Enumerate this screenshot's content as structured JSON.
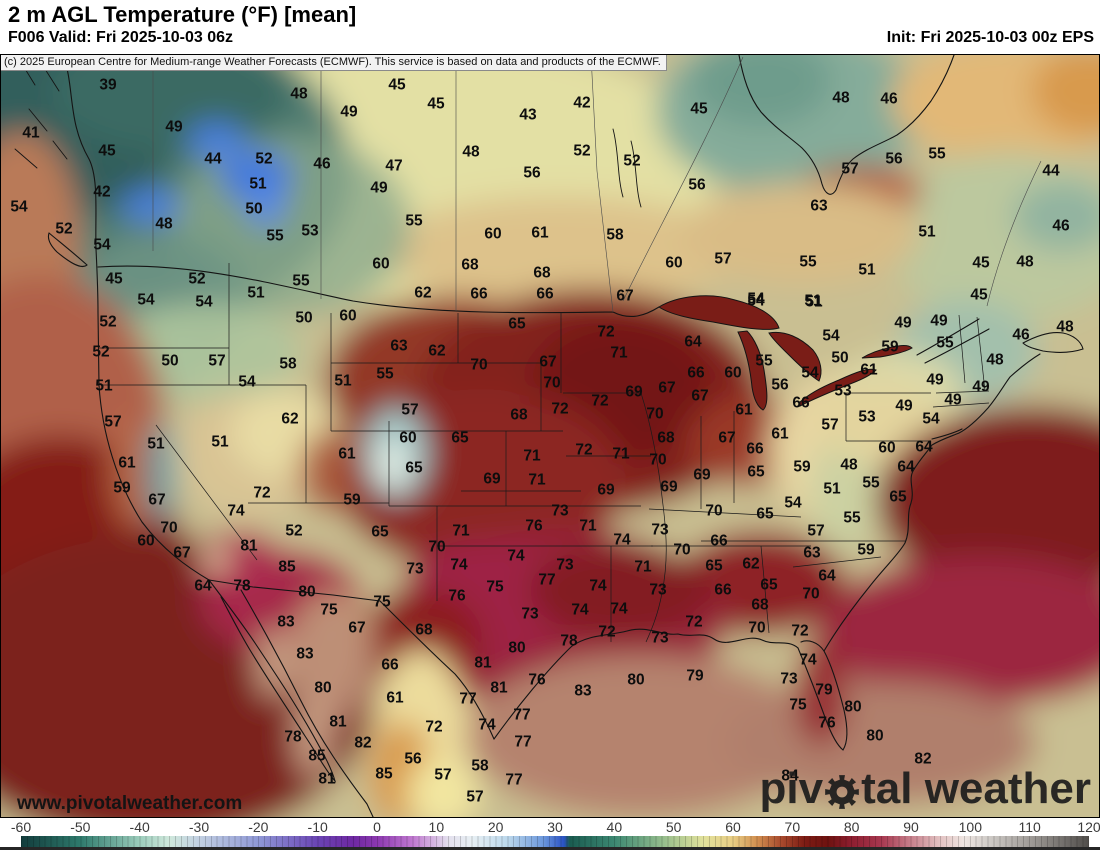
{
  "header": {
    "title": "2 m AGL Temperature (°F) [mean]",
    "valid": "F006 Valid: Fri 2025-10-03 06z",
    "init": "Init: Fri 2025-10-03 00z EPS"
  },
  "copyright": "(c) 2025 European Centre for Medium-range Weather Forecasts (ECMWF). This service is based on data and products of the ECMWF.",
  "watermark": "www.pivotalweather.com",
  "logo": {
    "part1": "piv",
    "part2": "tal weather",
    "gear_icon": "gear-icon",
    "color": "#1d1d1d"
  },
  "colorbar": {
    "units": "°F",
    "ticks": [
      -60,
      -50,
      -40,
      -30,
      -20,
      -10,
      0,
      10,
      20,
      30,
      40,
      50,
      60,
      70,
      80,
      90,
      100,
      110,
      120
    ],
    "range": [
      -60,
      120
    ],
    "stops": [
      [
        -60,
        "#123c3c"
      ],
      [
        -50,
        "#2e7a6c"
      ],
      [
        -40,
        "#9ccdbc"
      ],
      [
        -35,
        "#cfe8dc"
      ],
      [
        -30,
        "#c2d0e2"
      ],
      [
        -20,
        "#8f98d6"
      ],
      [
        -10,
        "#6a44b4"
      ],
      [
        -4,
        "#6e28a2"
      ],
      [
        0,
        "#8c38b0"
      ],
      [
        6,
        "#c078d0"
      ],
      [
        12,
        "#e4e0ee"
      ],
      [
        16,
        "#e8f0f4"
      ],
      [
        22,
        "#bcd8ec"
      ],
      [
        28,
        "#6c98dc"
      ],
      [
        31.5,
        "#2a52c4"
      ],
      [
        32.5,
        "#1a5c50"
      ],
      [
        40,
        "#3c8872"
      ],
      [
        48,
        "#93bc8c"
      ],
      [
        55,
        "#e2e29c"
      ],
      [
        60,
        "#e8cd84"
      ],
      [
        64,
        "#d29050"
      ],
      [
        68,
        "#aa4c2e"
      ],
      [
        72,
        "#7e1c14"
      ],
      [
        76,
        "#6e1210"
      ],
      [
        80,
        "#8e1e30"
      ],
      [
        85,
        "#a83850"
      ],
      [
        90,
        "#c8808c"
      ],
      [
        95,
        "#e4c4c4"
      ],
      [
        99,
        "#efe6e2"
      ],
      [
        103,
        "#d0ccc8"
      ],
      [
        110,
        "#a09c98"
      ],
      [
        120,
        "#504d4a"
      ]
    ]
  },
  "map": {
    "labels": [
      [
        39,
        107,
        83
      ],
      [
        48,
        298,
        92
      ],
      [
        49,
        348,
        110
      ],
      [
        41,
        30,
        131
      ],
      [
        49,
        173,
        125
      ],
      [
        45,
        106,
        149
      ],
      [
        44,
        212,
        157
      ],
      [
        52,
        263,
        157
      ],
      [
        46,
        321,
        162
      ],
      [
        42,
        101,
        190
      ],
      [
        51,
        257,
        182
      ],
      [
        50,
        253,
        207
      ],
      [
        54,
        18,
        205
      ],
      [
        52,
        63,
        227
      ],
      [
        48,
        163,
        222
      ],
      [
        55,
        274,
        234
      ],
      [
        53,
        309,
        229
      ],
      [
        54,
        101,
        243
      ],
      [
        45,
        113,
        277
      ],
      [
        52,
        196,
        277
      ],
      [
        54,
        145,
        298
      ],
      [
        54,
        203,
        300
      ],
      [
        51,
        255,
        291
      ],
      [
        55,
        300,
        279
      ],
      [
        45,
        396,
        83
      ],
      [
        45,
        435,
        102
      ],
      [
        42,
        581,
        101
      ],
      [
        43,
        527,
        113
      ],
      [
        45,
        698,
        107
      ],
      [
        48,
        470,
        150
      ],
      [
        52,
        581,
        149
      ],
      [
        52,
        631,
        159
      ],
      [
        47,
        393,
        164
      ],
      [
        56,
        531,
        171
      ],
      [
        56,
        696,
        183
      ],
      [
        49,
        378,
        186
      ],
      [
        55,
        413,
        219
      ],
      [
        60,
        492,
        232
      ],
      [
        61,
        539,
        231
      ],
      [
        58,
        614,
        233
      ],
      [
        60,
        380,
        262
      ],
      [
        60,
        673,
        261
      ],
      [
        57,
        722,
        257
      ],
      [
        68,
        469,
        263
      ],
      [
        68,
        541,
        271
      ],
      [
        62,
        422,
        291
      ],
      [
        66,
        478,
        292
      ],
      [
        66,
        544,
        292
      ],
      [
        67,
        624,
        294
      ],
      [
        48,
        840,
        96
      ],
      [
        46,
        888,
        97
      ],
      [
        56,
        893,
        157
      ],
      [
        55,
        936,
        152
      ],
      [
        44,
        1050,
        169
      ],
      [
        57,
        849,
        167
      ],
      [
        63,
        818,
        204
      ],
      [
        51,
        926,
        230
      ],
      [
        46,
        1060,
        224
      ],
      [
        55,
        807,
        260
      ],
      [
        51,
        866,
        268
      ],
      [
        45,
        980,
        261
      ],
      [
        48,
        1024,
        260
      ],
      [
        45,
        978,
        293
      ],
      [
        51,
        812,
        299
      ],
      [
        54,
        755,
        299
      ],
      [
        52,
        107,
        320
      ],
      [
        50,
        303,
        316
      ],
      [
        60,
        347,
        314
      ],
      [
        52,
        100,
        350
      ],
      [
        50,
        169,
        359
      ],
      [
        57,
        216,
        359
      ],
      [
        58,
        287,
        362
      ],
      [
        54,
        246,
        380
      ],
      [
        51,
        342,
        379
      ],
      [
        51,
        103,
        384
      ],
      [
        57,
        112,
        420
      ],
      [
        62,
        289,
        417
      ],
      [
        51,
        155,
        442
      ],
      [
        51,
        219,
        440
      ],
      [
        61,
        346,
        452
      ],
      [
        61,
        126,
        461
      ],
      [
        59,
        121,
        486
      ],
      [
        67,
        156,
        498
      ],
      [
        72,
        261,
        491
      ],
      [
        74,
        235,
        509
      ],
      [
        59,
        351,
        498
      ],
      [
        70,
        168,
        526
      ],
      [
        52,
        293,
        529
      ],
      [
        60,
        145,
        539
      ],
      [
        67,
        181,
        551
      ],
      [
        81,
        248,
        544
      ],
      [
        65,
        516,
        322
      ],
      [
        72,
        605,
        330
      ],
      [
        63,
        398,
        344
      ],
      [
        62,
        436,
        349
      ],
      [
        71,
        618,
        351
      ],
      [
        64,
        692,
        340
      ],
      [
        70,
        478,
        363
      ],
      [
        67,
        547,
        360
      ],
      [
        55,
        384,
        372
      ],
      [
        66,
        695,
        371
      ],
      [
        60,
        732,
        371
      ],
      [
        70,
        551,
        381
      ],
      [
        69,
        633,
        390
      ],
      [
        67,
        666,
        386
      ],
      [
        67,
        699,
        394
      ],
      [
        72,
        599,
        399
      ],
      [
        57,
        409,
        408
      ],
      [
        72,
        559,
        407
      ],
      [
        70,
        654,
        412
      ],
      [
        68,
        518,
        413
      ],
      [
        60,
        407,
        436
      ],
      [
        65,
        459,
        436
      ],
      [
        68,
        665,
        436
      ],
      [
        67,
        726,
        436
      ],
      [
        72,
        583,
        448
      ],
      [
        71,
        620,
        452
      ],
      [
        71,
        531,
        454
      ],
      [
        70,
        657,
        458
      ],
      [
        65,
        413,
        466
      ],
      [
        69,
        491,
        477
      ],
      [
        71,
        536,
        478
      ],
      [
        69,
        701,
        473
      ],
      [
        69,
        605,
        488
      ],
      [
        69,
        668,
        485
      ],
      [
        73,
        559,
        509
      ],
      [
        70,
        713,
        509
      ],
      [
        76,
        533,
        524
      ],
      [
        71,
        587,
        524
      ],
      [
        71,
        460,
        529
      ],
      [
        73,
        659,
        528
      ],
      [
        74,
        621,
        538
      ],
      [
        66,
        718,
        539
      ],
      [
        65,
        379,
        530
      ],
      [
        70,
        436,
        545
      ],
      [
        70,
        681,
        548
      ],
      [
        74,
        515,
        554
      ],
      [
        49,
        902,
        321
      ],
      [
        49,
        938,
        319
      ],
      [
        48,
        1064,
        325
      ],
      [
        46,
        1020,
        333
      ],
      [
        54,
        830,
        334
      ],
      [
        55,
        944,
        341
      ],
      [
        59,
        889,
        345
      ],
      [
        55,
        763,
        359
      ],
      [
        50,
        839,
        356
      ],
      [
        48,
        994,
        358
      ],
      [
        61,
        868,
        368
      ],
      [
        54,
        809,
        371
      ],
      [
        49,
        934,
        378
      ],
      [
        56,
        779,
        383
      ],
      [
        49,
        980,
        385
      ],
      [
        53,
        842,
        389
      ],
      [
        66,
        800,
        401
      ],
      [
        49,
        952,
        398
      ],
      [
        61,
        743,
        408
      ],
      [
        49,
        903,
        404
      ],
      [
        53,
        866,
        415
      ],
      [
        57,
        829,
        423
      ],
      [
        54,
        930,
        417
      ],
      [
        61,
        779,
        432
      ],
      [
        66,
        754,
        447
      ],
      [
        60,
        886,
        446
      ],
      [
        64,
        923,
        445
      ],
      [
        65,
        755,
        470
      ],
      [
        59,
        801,
        465
      ],
      [
        48,
        848,
        463
      ],
      [
        64,
        905,
        465
      ],
      [
        51,
        831,
        487
      ],
      [
        55,
        870,
        481
      ],
      [
        65,
        897,
        495
      ],
      [
        54,
        792,
        501
      ],
      [
        65,
        764,
        512
      ],
      [
        55,
        851,
        516
      ],
      [
        57,
        815,
        529
      ],
      [
        63,
        811,
        551
      ],
      [
        59,
        865,
        548
      ],
      [
        54,
        755,
        297
      ],
      [
        51,
        813,
        300
      ],
      [
        64,
        202,
        584
      ],
      [
        78,
        241,
        584
      ],
      [
        85,
        286,
        565
      ],
      [
        80,
        306,
        590
      ],
      [
        75,
        328,
        608
      ],
      [
        67,
        356,
        626
      ],
      [
        83,
        285,
        620
      ],
      [
        83,
        304,
        652
      ],
      [
        80,
        322,
        686
      ],
      [
        81,
        337,
        720
      ],
      [
        82,
        362,
        741
      ],
      [
        78,
        292,
        735
      ],
      [
        85,
        316,
        754
      ],
      [
        81,
        326,
        777
      ],
      [
        73,
        414,
        567
      ],
      [
        74,
        458,
        563
      ],
      [
        73,
        564,
        563
      ],
      [
        71,
        642,
        565
      ],
      [
        65,
        713,
        564
      ],
      [
        77,
        546,
        578
      ],
      [
        75,
        494,
        585
      ],
      [
        74,
        597,
        584
      ],
      [
        73,
        657,
        588
      ],
      [
        66,
        722,
        588
      ],
      [
        76,
        456,
        594
      ],
      [
        75,
        381,
        600
      ],
      [
        73,
        529,
        612
      ],
      [
        74,
        579,
        608
      ],
      [
        74,
        618,
        607
      ],
      [
        72,
        693,
        620
      ],
      [
        68,
        423,
        628
      ],
      [
        72,
        606,
        630
      ],
      [
        78,
        568,
        639
      ],
      [
        73,
        659,
        636
      ],
      [
        80,
        516,
        646
      ],
      [
        66,
        389,
        663
      ],
      [
        81,
        482,
        661
      ],
      [
        79,
        694,
        674
      ],
      [
        80,
        635,
        678
      ],
      [
        76,
        536,
        678
      ],
      [
        83,
        582,
        689
      ],
      [
        81,
        498,
        686
      ],
      [
        61,
        394,
        696
      ],
      [
        77,
        467,
        697
      ],
      [
        72,
        433,
        725
      ],
      [
        74,
        486,
        723
      ],
      [
        77,
        521,
        713
      ],
      [
        77,
        522,
        740
      ],
      [
        56,
        412,
        757
      ],
      [
        85,
        383,
        772
      ],
      [
        57,
        442,
        773
      ],
      [
        58,
        479,
        764
      ],
      [
        77,
        513,
        778
      ],
      [
        57,
        474,
        795
      ],
      [
        62,
        750,
        562
      ],
      [
        64,
        826,
        574
      ],
      [
        65,
        768,
        583
      ],
      [
        70,
        810,
        592
      ],
      [
        68,
        759,
        603
      ],
      [
        70,
        756,
        626
      ],
      [
        72,
        799,
        629
      ],
      [
        74,
        807,
        658
      ],
      [
        73,
        788,
        677
      ],
      [
        79,
        823,
        688
      ],
      [
        75,
        797,
        703
      ],
      [
        80,
        852,
        705
      ],
      [
        76,
        826,
        721
      ],
      [
        80,
        874,
        734
      ],
      [
        82,
        922,
        757
      ],
      [
        84,
        789,
        774
      ]
    ]
  }
}
